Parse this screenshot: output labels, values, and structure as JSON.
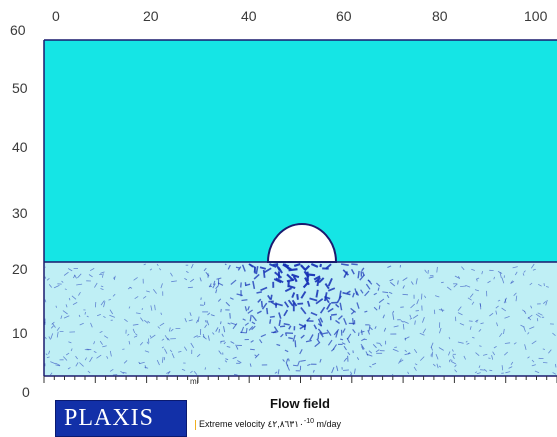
{
  "plot": {
    "x_ticks": [
      "0",
      "20",
      "40",
      "60",
      "80",
      "100"
    ],
    "y_ticks": [
      "60",
      "50",
      "40",
      "30",
      "20",
      "10",
      "0"
    ],
    "small_label": "mi",
    "colors": {
      "water": "#15e5e5",
      "soil": "#bfeff5",
      "flow_vectors": "#1530b5",
      "boundary": "#1a1a6e",
      "tunnel": "#ffffff"
    }
  },
  "legend": {
    "logo_text": "PLAXIS",
    "title": "Flow field",
    "velocity_prefix": "Extreme velocity",
    "velocity_value": "٤٢,٨٦٣١٠",
    "velocity_exponent": "-10",
    "velocity_unit": "m/day"
  }
}
